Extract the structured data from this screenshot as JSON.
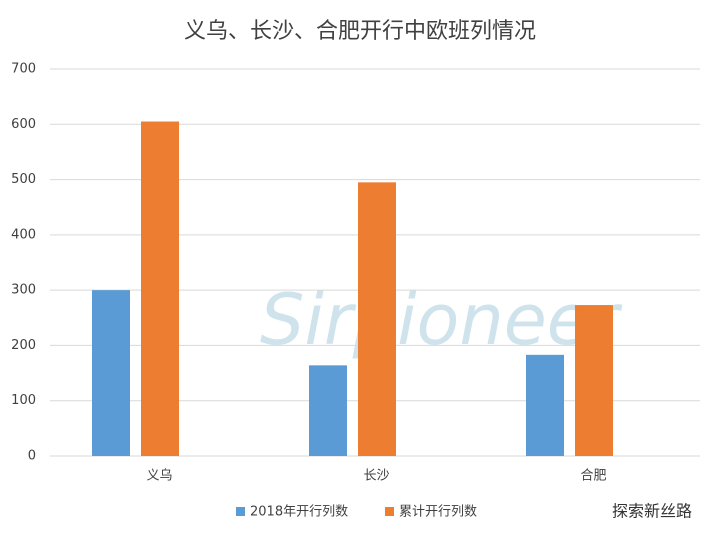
{
  "chart_data": {
    "type": "bar",
    "title": "义乌、长沙、合肥开行中欧班列情况",
    "categories": [
      "义乌",
      "长沙",
      "合肥"
    ],
    "series": [
      {
        "name": "2018年开行列数",
        "color": "#5b9bd5",
        "values": [
          300,
          164,
          183
        ]
      },
      {
        "name": "累计开行列数",
        "color": "#ed7d31",
        "values": [
          605,
          495,
          273
        ]
      }
    ],
    "ylim": [
      0,
      700
    ],
    "yticks": [
      0,
      100,
      200,
      300,
      400,
      500,
      600,
      700
    ],
    "grid": true,
    "legend": "bottom",
    "watermark": "Sirpioneer",
    "badge": "探索新丝路"
  }
}
